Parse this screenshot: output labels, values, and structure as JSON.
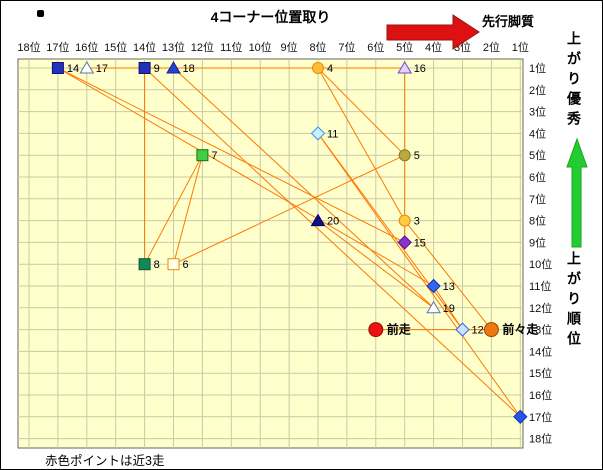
{
  "header": {
    "title": "4コーナー位置取り",
    "lead_arrow_label": "先行脚質"
  },
  "right_panel": {
    "top_label": "上がり優秀",
    "bottom_label": "上がり順位"
  },
  "footer": {
    "note": "赤色ポイントは近3走"
  },
  "colors": {
    "lead_arrow": "#dd1111",
    "agari_arrow": "#22cc33",
    "line": "#ff7700",
    "plot_bg": "#ffffcc",
    "grid": "#c9c9a8",
    "plot_border": "#666666"
  },
  "chart_data": {
    "type": "scatter",
    "title": "4コーナー位置取り",
    "x_axis_note": "4th corner position, rank 18 (left) to rank 1 (right)",
    "y_axis_note": "closing-speed rank, rank 1 (top) to rank 18 (bottom)",
    "x_ticks": [
      "18位",
      "17位",
      "16位",
      "15位",
      "14位",
      "13位",
      "12位",
      "11位",
      "10位",
      "9位",
      "8位",
      "7位",
      "6位",
      "5位",
      "4位",
      "3位",
      "2位",
      "1位"
    ],
    "y_ticks": [
      "1位",
      "2位",
      "3位",
      "4位",
      "5位",
      "6位",
      "7位",
      "8位",
      "9位",
      "10位",
      "11位",
      "12位",
      "13位",
      "14位",
      "15位",
      "16位",
      "17位",
      "18位"
    ],
    "x_range": [
      18,
      1
    ],
    "y_range": [
      1,
      18
    ],
    "legend_note": "赤色ポイントは近3走",
    "points": [
      {
        "id": 1,
        "label": "前走",
        "x": 6,
        "y": 13,
        "shape": "circle",
        "fill": "#ee1111",
        "stroke": "#991100"
      },
      {
        "id": 2,
        "label": "前々走",
        "x": 2,
        "y": 13,
        "shape": "circle",
        "fill": "#ee7711",
        "stroke": "#994400"
      },
      {
        "id": 3,
        "label": "3",
        "x": 5,
        "y": 8,
        "shape": "circle",
        "fill": "#ffcc44",
        "stroke": "#ee8800"
      },
      {
        "id": 4,
        "label": "4",
        "x": 8,
        "y": 1,
        "shape": "circle",
        "fill": "#ffbb33",
        "stroke": "#ee8800"
      },
      {
        "id": 5,
        "label": "5",
        "x": 5,
        "y": 5,
        "shape": "circle",
        "fill": "#bbaa44",
        "stroke": "#887722"
      },
      {
        "id": 6,
        "label": "6",
        "x": 13,
        "y": 10,
        "shape": "square",
        "fill": "#ffffee",
        "stroke": "#ee8800"
      },
      {
        "id": 7,
        "label": "7",
        "x": 12,
        "y": 5,
        "shape": "square",
        "fill": "#44cc44",
        "stroke": "#117711"
      },
      {
        "id": 8,
        "label": "8",
        "x": 14,
        "y": 10,
        "shape": "square",
        "fill": "#118855",
        "stroke": "#0a5533"
      },
      {
        "id": 9,
        "label": "9",
        "x": 14,
        "y": 1,
        "shape": "square",
        "fill": "#2233bb",
        "stroke": "#111177"
      },
      {
        "id": 10,
        "label": "",
        "x": 1,
        "y": 17,
        "shape": "diamond",
        "fill": "#2255ee",
        "stroke": "#1133aa"
      },
      {
        "id": 11,
        "label": "11",
        "x": 8,
        "y": 4,
        "shape": "diamond",
        "fill": "#cceeff",
        "stroke": "#3399ee"
      },
      {
        "id": 12,
        "label": "12",
        "x": 3,
        "y": 13,
        "shape": "diamond",
        "fill": "#cce0ff",
        "stroke": "#3366dd"
      },
      {
        "id": 13,
        "label": "13",
        "x": 4,
        "y": 11,
        "shape": "diamond",
        "fill": "#3366ee",
        "stroke": "#1133aa"
      },
      {
        "id": 14,
        "label": "14",
        "x": 17,
        "y": 1,
        "shape": "square",
        "fill": "#2233bb",
        "stroke": "#111177"
      },
      {
        "id": 15,
        "label": "15",
        "x": 5,
        "y": 9,
        "shape": "diamond",
        "fill": "#8833cc",
        "stroke": "#551199"
      },
      {
        "id": 16,
        "label": "16",
        "x": 5,
        "y": 1,
        "shape": "triangle",
        "fill": "#e0d4ff",
        "stroke": "#7744cc"
      },
      {
        "id": 17,
        "label": "17",
        "x": 16,
        "y": 1,
        "shape": "triangle",
        "fill": "#ffffff",
        "stroke": "#5577aa"
      },
      {
        "id": 18,
        "label": "18",
        "x": 13,
        "y": 1,
        "shape": "triangle",
        "fill": "#2244cc",
        "stroke": "#112299"
      },
      {
        "id": 19,
        "label": "19",
        "x": 4,
        "y": 12,
        "shape": "triangle",
        "fill": "#ffffff",
        "stroke": "#5577aa"
      },
      {
        "id": 20,
        "label": "20",
        "x": 8,
        "y": 8,
        "shape": "triangle",
        "fill": "#111188",
        "stroke": "#000055"
      }
    ],
    "connect_order": [
      1,
      2,
      3,
      4,
      5,
      6,
      7,
      8,
      9,
      10,
      11,
      12,
      13,
      14,
      15,
      16,
      17,
      18,
      19,
      20
    ]
  }
}
